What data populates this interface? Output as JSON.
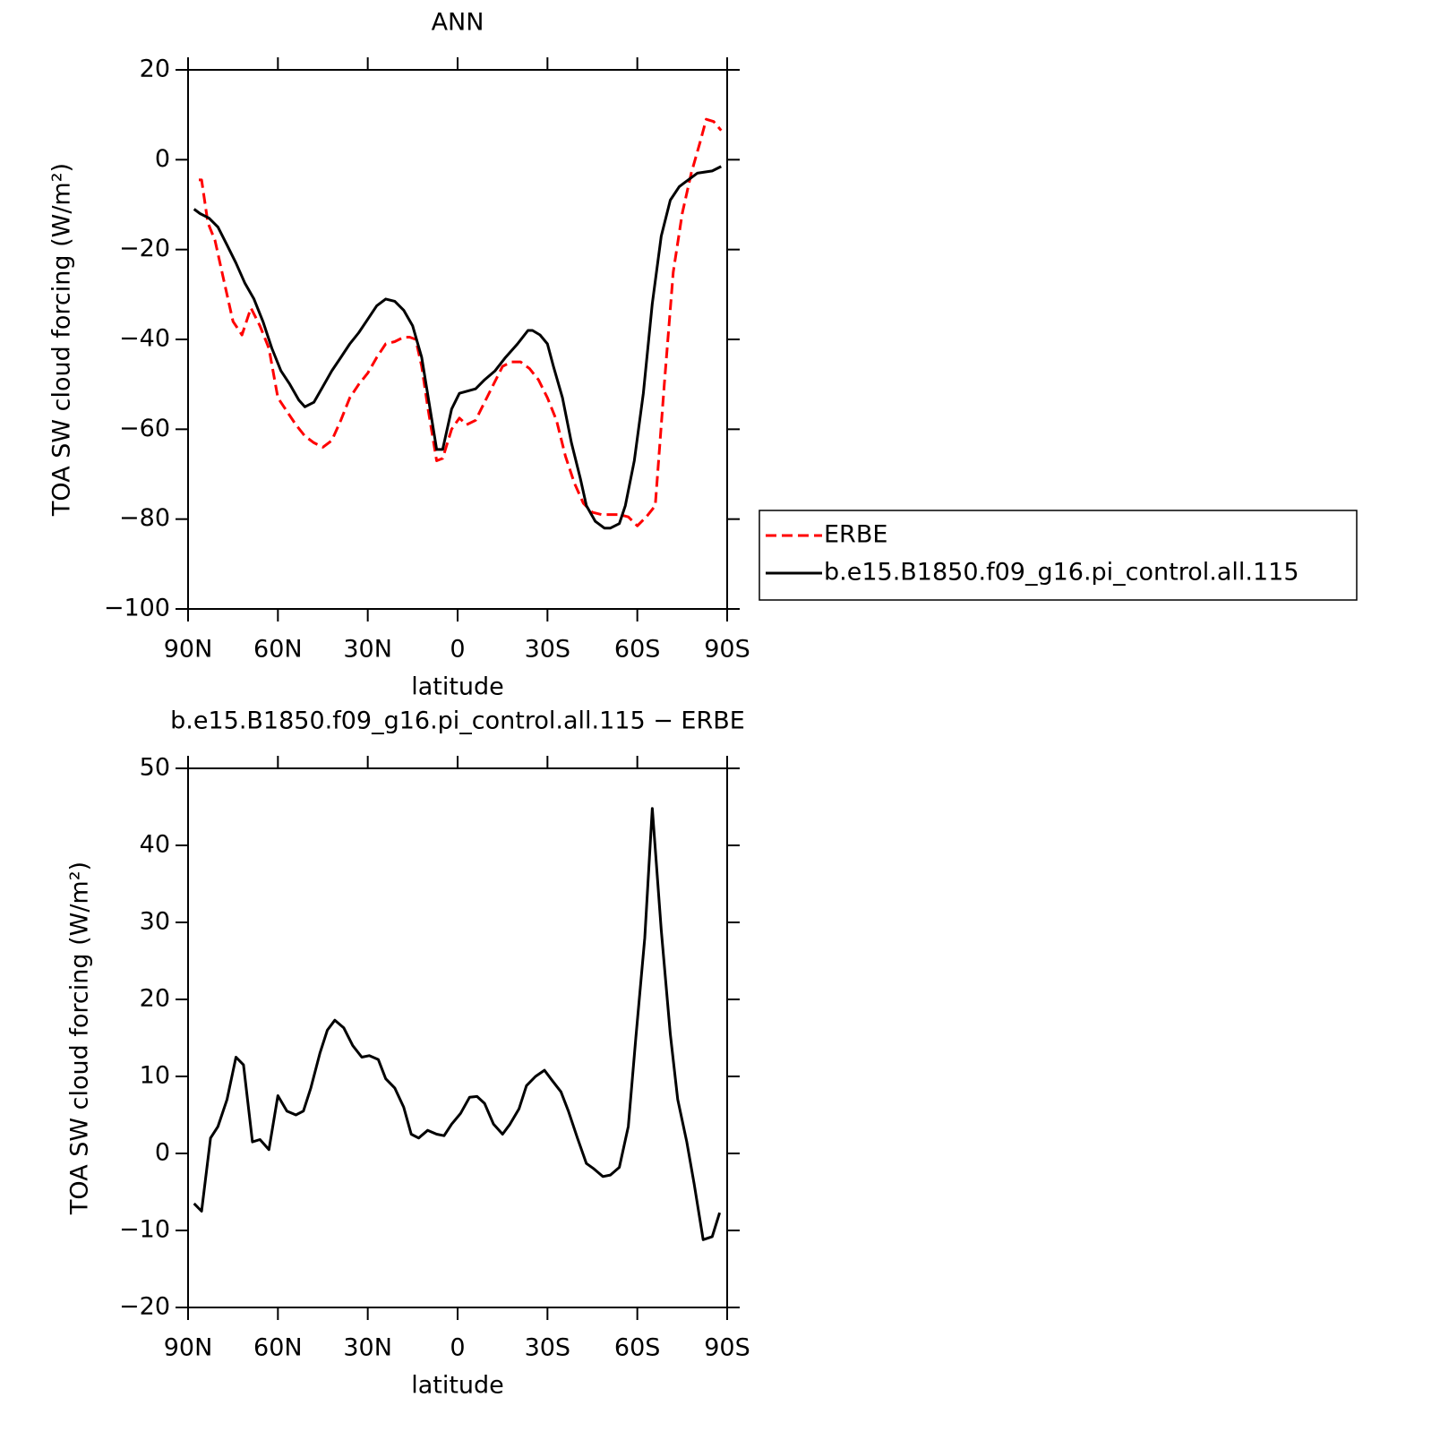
{
  "chart_data": [
    {
      "type": "line",
      "title": "ANN",
      "xlabel": "latitude",
      "ylabel": "TOA SW cloud forcing (W/m²)",
      "xlim": [
        90,
        -90
      ],
      "xticks": [
        {
          "value": 90,
          "label": "90N"
        },
        {
          "value": 60,
          "label": "60N"
        },
        {
          "value": 30,
          "label": "30N"
        },
        0,
        {
          "value": -30,
          "label": "30S"
        },
        {
          "value": -60,
          "label": "60S"
        },
        {
          "value": -90,
          "label": "90S"
        }
      ],
      "ylim": [
        -100,
        20
      ],
      "yticks": [
        {
          "value": -100,
          "label": "−100"
        },
        {
          "value": -80,
          "label": "−80"
        },
        {
          "value": -60,
          "label": "−60"
        },
        {
          "value": -40,
          "label": "−40"
        },
        {
          "value": -20,
          "label": "−20"
        },
        0,
        20
      ],
      "legend": "right",
      "series": [
        {
          "name": "ERBE",
          "color": "#ff0000",
          "linestyle": "dashed",
          "x": [
            86.4,
            85.5,
            83.4,
            81,
            78,
            75,
            72,
            69,
            66,
            63,
            60,
            57,
            54,
            51,
            48,
            45,
            42,
            39,
            36,
            33,
            30,
            27,
            24,
            21,
            18,
            16,
            14,
            12,
            10,
            7,
            5,
            2,
            -0.6,
            -3,
            -6,
            -9,
            -12,
            -15,
            -18,
            -21,
            -24,
            -27,
            -30,
            -33,
            -36,
            -39,
            -42,
            -45,
            -48,
            -54,
            -57,
            -60,
            -63,
            -66,
            -69,
            -72,
            -75,
            -78,
            -81,
            -83,
            -85.5,
            -88
          ],
          "values": [
            -4.5,
            -4.5,
            -14,
            -18,
            -27,
            -36,
            -39,
            -33,
            -37,
            -42,
            -53,
            -56,
            -59,
            -61.5,
            -63,
            -64,
            -62.5,
            -58,
            -53,
            -50,
            -47.5,
            -44,
            -41,
            -40.5,
            -39.5,
            -39.5,
            -40,
            -46,
            -55,
            -67,
            -66.5,
            -60,
            -57.5,
            -59,
            -58,
            -54,
            -50,
            -46,
            -45,
            -45,
            -46.5,
            -49,
            -53,
            -58,
            -66,
            -72,
            -76.5,
            -78.5,
            -79,
            -79,
            -79.5,
            -81.5,
            -79.5,
            -77,
            -50,
            -25,
            -12,
            -3,
            4,
            9,
            8.5,
            6.5
          ]
        },
        {
          "name": "b.e15.B1850.f09_g16.pi_control.all.115",
          "color": "#000000",
          "linestyle": "solid",
          "x": [
            88,
            86,
            83,
            80,
            77,
            74,
            71,
            68,
            65,
            62,
            59,
            56,
            53,
            51,
            48,
            45,
            42,
            39,
            36,
            33,
            30,
            27,
            24,
            21,
            18,
            15,
            12,
            7,
            5,
            2,
            -0.6,
            -6,
            -9,
            -12.5,
            -16,
            -20,
            -23.5,
            -25,
            -27.5,
            -30,
            -32,
            -35,
            -38,
            -41,
            -43,
            -46,
            -49,
            -51,
            -54,
            -56,
            -59,
            -62,
            -65,
            -68,
            -71,
            -74,
            -77,
            -80,
            -85,
            -88
          ],
          "values": [
            -11,
            -12,
            -13,
            -15,
            -19,
            -23,
            -27.5,
            -31,
            -36,
            -42,
            -47,
            -50,
            -53.5,
            -55,
            -54,
            -50.5,
            -47,
            -44,
            -41,
            -38.5,
            -35.5,
            -32.5,
            -31,
            -31.5,
            -33.5,
            -37,
            -44,
            -64.5,
            -64.5,
            -55.5,
            -52,
            -51,
            -49,
            -47,
            -44,
            -41,
            -38,
            -38,
            -39,
            -41,
            -46,
            -53,
            -63,
            -71,
            -77,
            -80.5,
            -82,
            -82,
            -81,
            -77,
            -67,
            -52,
            -32,
            -17,
            -9,
            -6,
            -4.5,
            -3,
            -2.5,
            -1.5
          ]
        }
      ]
    },
    {
      "type": "line",
      "title": "b.e15.B1850.f09_g16.pi_control.all.115 − ERBE",
      "xlabel": "latitude",
      "ylabel": "TOA SW cloud forcing (W/m²)",
      "xlim": [
        90,
        -90
      ],
      "xticks": [
        {
          "value": 90,
          "label": "90N"
        },
        {
          "value": 60,
          "label": "60N"
        },
        {
          "value": 30,
          "label": "30N"
        },
        0,
        {
          "value": -30,
          "label": "30S"
        },
        {
          "value": -60,
          "label": "60S"
        },
        {
          "value": -90,
          "label": "90S"
        }
      ],
      "ylim": [
        -20,
        50
      ],
      "yticks": [
        {
          "value": -20,
          "label": "−20"
        },
        {
          "value": -10,
          "label": "−10"
        },
        0,
        10,
        20,
        30,
        40,
        50
      ],
      "series": [
        {
          "color": "#000000",
          "linestyle": "solid",
          "x": [
            88,
            85.5,
            82.5,
            80,
            77,
            74,
            71.5,
            68.5,
            66,
            63,
            60,
            57,
            54,
            51.5,
            49,
            46,
            43.5,
            41,
            38,
            35,
            32,
            29.5,
            26.5,
            24,
            21,
            18,
            15.5,
            13,
            10,
            7,
            4.5,
            2,
            -1,
            -4,
            -6.5,
            -9,
            -12,
            -15,
            -17.5,
            -20.5,
            -23,
            -26,
            -29,
            -31.5,
            -34.5,
            -37,
            -40,
            -43,
            -45.5,
            -48.5,
            -51,
            -54,
            -57,
            -59.5,
            -62.5,
            -65,
            -68,
            -71,
            -73.5,
            -76.5,
            -79,
            -82,
            -85,
            -87.5
          ],
          "values": [
            -6.5,
            -7.5,
            2,
            3.5,
            7,
            12.5,
            11.5,
            1.5,
            1.8,
            0.5,
            7.5,
            5.5,
            5,
            5.5,
            8.5,
            13,
            16,
            17.3,
            16.3,
            14,
            12.5,
            12.7,
            12.2,
            9.7,
            8.5,
            6,
            2.5,
            2,
            3,
            2.5,
            2.3,
            3.8,
            5.2,
            7.3,
            7.4,
            6.5,
            3.8,
            2.5,
            3.8,
            5.8,
            8.8,
            10,
            10.8,
            9.5,
            8,
            5.5,
            2,
            -1.3,
            -2,
            -3,
            -2.8,
            -1.8,
            3.5,
            15,
            28,
            44.8,
            29,
            15.5,
            7,
            1.5,
            -4,
            -11.2,
            -10.8,
            -7.7
          ]
        }
      ]
    }
  ]
}
